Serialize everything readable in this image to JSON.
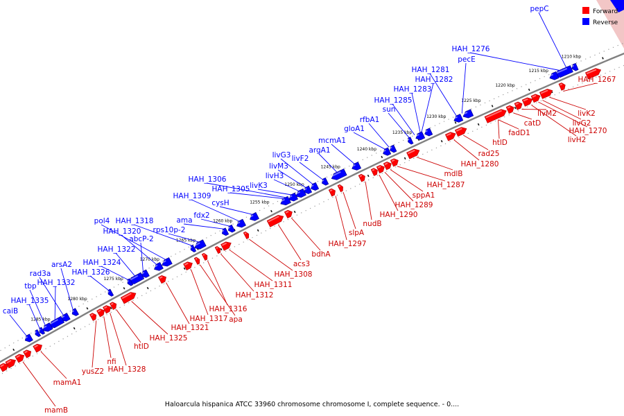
{
  "caption": "Haloarcula hispanica ATCC 33960 chromosome chromosome I, complete sequence. - 0....",
  "legend": [
    {
      "label": "Forward",
      "color": "#ff0000"
    },
    {
      "label": "Reverse",
      "color": "#0000ff"
    }
  ],
  "colors": {
    "forward": "#ff0000",
    "reverse": "#0000ff",
    "backbone": "#808080"
  },
  "ticks": [
    "1210 kbp",
    "1215 kbp",
    "1220 kbp",
    "1225 kbp",
    "1230 kbp",
    "1235 kbp",
    "1240 kbp",
    "1245 kbp",
    "1250 kbp",
    "1255 kbp",
    "1260 kbp",
    "1265 kbp",
    "1270 kbp",
    "1275 kbp",
    "1280 kbp",
    "1285 kbp"
  ],
  "reverse_labels": [
    "pepC",
    "HAH_1276",
    "pecE",
    "HAH_1281",
    "HAH_1282",
    "HAH_1283",
    "HAH_1285",
    "sun",
    "rfbA1",
    "gloA1",
    "mcmA1",
    "argA1",
    "livF2",
    "livG3",
    "livM3",
    "livH3",
    "livK3",
    "HAH_1306",
    "HAH_1305",
    "cysH",
    "HAH_1309",
    "fdx2",
    "ama",
    "rps10p-2",
    "HAH_1318",
    "pol4",
    "HAH_1320",
    "abcP-2",
    "HAH_1322",
    "HAH_1324",
    "HAH_1326",
    "arsA2",
    "rad3a",
    "HAH_1332",
    "tbp",
    "HAH_1335",
    "caiB"
  ],
  "forward_labels": [
    "HAH_1267",
    "livK2",
    "livG2",
    "HAH_1270",
    "livH2",
    "livM2",
    "catD",
    "fadD1",
    "htlD",
    "rad25",
    "HAH_1280",
    "mdlB",
    "HAH_1287",
    "sppA1",
    "HAH_1289",
    "HAH_1290",
    "nudB",
    "slpA",
    "HAH_1297",
    "bdhA",
    "acs3",
    "HAH_1308",
    "HAH_1311",
    "HAH_1312",
    "HAH_1316",
    "apa",
    "HAH_1317",
    "HAH_1321",
    "HAH_1325",
    "htlD",
    "HAH_1328",
    "nfi",
    "yusZ2",
    "mamA1",
    "mamB"
  ]
}
